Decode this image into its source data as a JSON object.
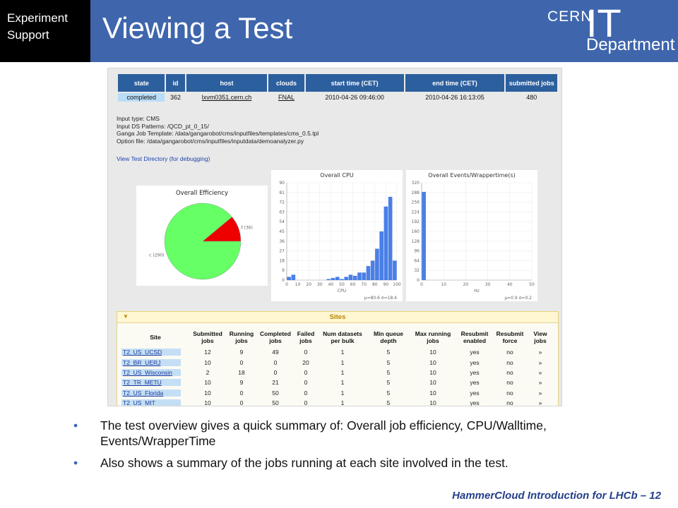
{
  "header": {
    "badge_line1": "Experiment",
    "badge_line2": "Support",
    "title": "Viewing a Test",
    "logo_top": "CERN",
    "logo_it": "IT",
    "logo_bottom": "Department"
  },
  "test_table": {
    "columns": [
      "state",
      "id",
      "host",
      "clouds",
      "start time (CET)",
      "end time (CET)",
      "submitted jobs"
    ],
    "row": {
      "state": "completed",
      "id": "362",
      "host": "lxvm0351.cern.ch",
      "clouds": "FNAL",
      "start": "2010-04-26 09:46:00",
      "end": "2010-04-26 16:13:05",
      "submitted": "480"
    }
  },
  "info": {
    "input_type": "Input type: CMS",
    "input_ds": "Input DS Patterns: /QCD_pt_0_15/",
    "ganga_template": "Ganga Job Template: /data/gangarobot/cms/inputfiles/templates/cms_0.5.tpl",
    "option_file": "Option file: /data/gangarobot/cms/inputfiles/inputdata/demoanalyzer.py",
    "view_dir_link": "View Test Directory (for debugging)"
  },
  "chart_data": [
    {
      "type": "pie",
      "title": "Overall Efficiency",
      "labels": [
        "f (36)",
        "c (290)"
      ],
      "values": [
        36,
        290
      ],
      "colors": [
        "#ee0000",
        "#66ff66"
      ]
    },
    {
      "type": "bar",
      "title": "Overall CPU",
      "xlabel": "CPU",
      "x_ticks": [
        "0",
        "10",
        "20",
        "30",
        "40",
        "50",
        "60",
        "70",
        "80",
        "90",
        "100"
      ],
      "y_ticks": [
        "0",
        "9",
        "18",
        "27",
        "36",
        "45",
        "54",
        "63",
        "72",
        "81",
        "90"
      ],
      "xlim": [
        0,
        100
      ],
      "ylim": [
        0,
        90
      ],
      "bins": [
        {
          "x0": 0,
          "x1": 4,
          "y": 3
        },
        {
          "x0": 4,
          "x1": 8,
          "y": 5
        },
        {
          "x0": 36,
          "x1": 40,
          "y": 1
        },
        {
          "x0": 40,
          "x1": 44,
          "y": 2
        },
        {
          "x0": 44,
          "x1": 48,
          "y": 3
        },
        {
          "x0": 48,
          "x1": 52,
          "y": 1
        },
        {
          "x0": 52,
          "x1": 56,
          "y": 3
        },
        {
          "x0": 56,
          "x1": 60,
          "y": 5
        },
        {
          "x0": 60,
          "x1": 64,
          "y": 4
        },
        {
          "x0": 64,
          "x1": 68,
          "y": 7
        },
        {
          "x0": 68,
          "x1": 72,
          "y": 7
        },
        {
          "x0": 72,
          "x1": 76,
          "y": 13
        },
        {
          "x0": 76,
          "x1": 80,
          "y": 18
        },
        {
          "x0": 80,
          "x1": 84,
          "y": 29
        },
        {
          "x0": 84,
          "x1": 88,
          "y": 45
        },
        {
          "x0": 88,
          "x1": 92,
          "y": 68
        },
        {
          "x0": 92,
          "x1": 96,
          "y": 77
        },
        {
          "x0": 96,
          "x1": 100,
          "y": 18
        }
      ],
      "stats": "μ=80.6 σ=18.4"
    },
    {
      "type": "bar",
      "title": "Overall Events/Wrappertime(s)",
      "xlabel": "Hz",
      "x_ticks": [
        "0",
        "10",
        "20",
        "30",
        "40",
        "50"
      ],
      "y_ticks": [
        "0",
        "32",
        "64",
        "96",
        "128",
        "160",
        "192",
        "224",
        "256",
        "288",
        "320"
      ],
      "xlim": [
        0,
        50
      ],
      "ylim": [
        0,
        320
      ],
      "bins": [
        {
          "x0": 0,
          "x1": 2,
          "y": 290
        }
      ],
      "stats": "μ=0.9 σ=0.2"
    }
  ],
  "sites": {
    "title": "Sites",
    "columns": [
      "Site",
      "Submitted jobs",
      "Running jobs",
      "Completed jobs",
      "Failed jobs",
      "Num datasets per bulk",
      "Min queue depth",
      "Max running jobs",
      "Resubmit enabled",
      "Resubmit force",
      "View jobs"
    ],
    "rows": [
      [
        "T2_US_UCSD",
        "12",
        "9",
        "49",
        "0",
        "1",
        "5",
        "10",
        "yes",
        "no",
        "»"
      ],
      [
        "T2_BR_UERJ",
        "10",
        "0",
        "0",
        "20",
        "1",
        "5",
        "10",
        "yes",
        "no",
        "»"
      ],
      [
        "T2_US_Wisconsin",
        "2",
        "18",
        "0",
        "0",
        "1",
        "5",
        "10",
        "yes",
        "no",
        "»"
      ],
      [
        "T2_TR_METU",
        "10",
        "9",
        "21",
        "0",
        "1",
        "5",
        "10",
        "yes",
        "no",
        "»"
      ],
      [
        "T2_US_Florida",
        "10",
        "0",
        "50",
        "0",
        "1",
        "5",
        "10",
        "yes",
        "no",
        "»"
      ],
      [
        "T2_US_MIT",
        "10",
        "0",
        "50",
        "0",
        "1",
        "5",
        "10",
        "yes",
        "no",
        "»"
      ]
    ]
  },
  "bullets": [
    "The test overview gives a quick summary of: Overall job efficiency, CPU/Walltime, Events/WrapperTime",
    "Also shows a summary of the jobs running at each site involved in the test."
  ],
  "bullet_marker": "•",
  "footer": "HammerCloud Introduction for LHCb – 12",
  "colors": {
    "header_bg": "#3f66ad",
    "table_header": "#2c5f9e",
    "bar_blue": "#4a7fe6"
  }
}
